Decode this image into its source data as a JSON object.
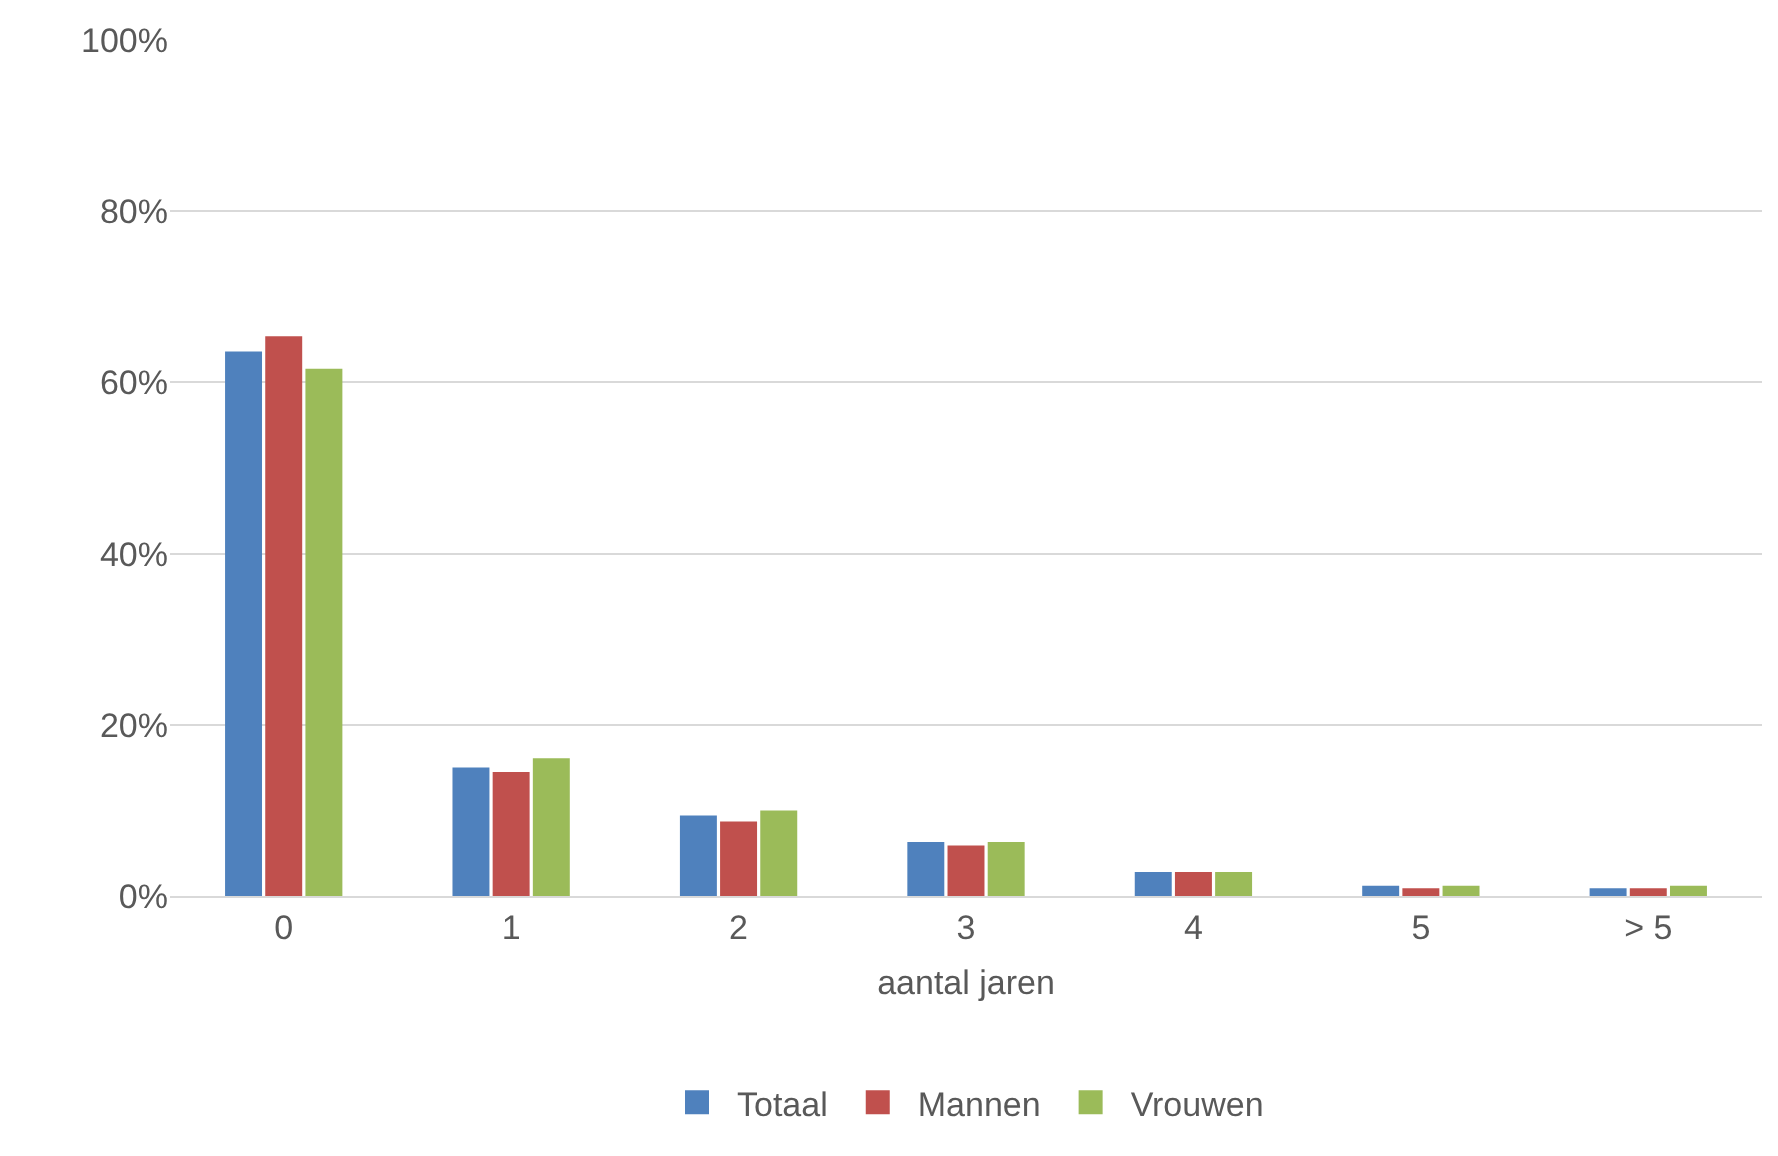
{
  "chart_data": {
    "type": "bar",
    "xlabel": "aantal jaren",
    "categories": [
      "0",
      "1",
      "2",
      "3",
      "4",
      "5",
      "> 5"
    ],
    "series": [
      {
        "name": "Totaal",
        "color": "#4f81bd",
        "values": [
          63.6,
          15.0,
          9.4,
          6.3,
          2.8,
          1.2,
          0.9
        ]
      },
      {
        "name": "Mannen",
        "color": "#c0504d",
        "values": [
          65.4,
          14.5,
          8.7,
          5.9,
          2.8,
          0.9,
          0.9
        ]
      },
      {
        "name": "Vrouwen",
        "color": "#9bbb59",
        "values": [
          61.6,
          16.1,
          10.0,
          6.3,
          2.8,
          1.2,
          1.2
        ]
      }
    ],
    "ylim": [
      0,
      100
    ],
    "yticks": [
      {
        "value": 0,
        "label": "0%"
      },
      {
        "value": 20,
        "label": "20%"
      },
      {
        "value": 40,
        "label": "40%"
      },
      {
        "value": 60,
        "label": "60%"
      },
      {
        "value": 80,
        "label": "80%"
      },
      {
        "value": 100,
        "label": "100%"
      }
    ],
    "grid": "y",
    "legend": "bottom"
  }
}
